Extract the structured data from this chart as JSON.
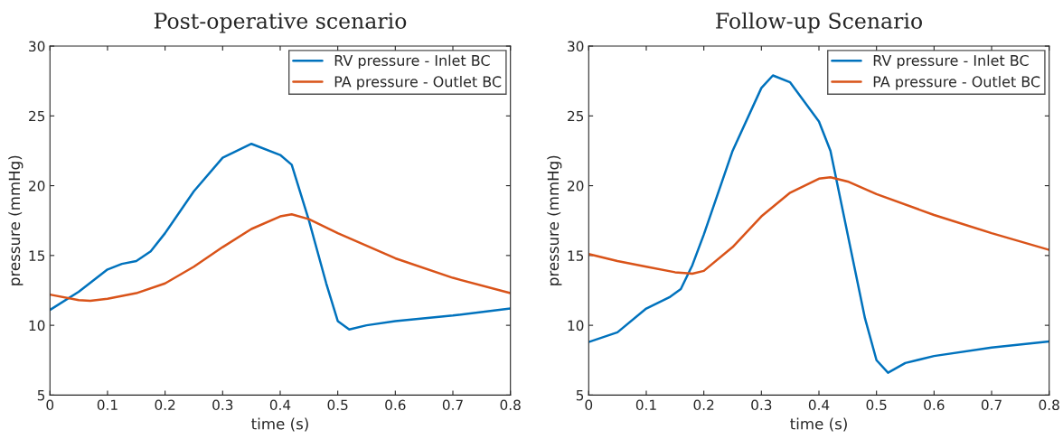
{
  "chart_data": [
    {
      "type": "line",
      "title": "Post-operative scenario",
      "xlabel": "time (s)",
      "ylabel": "pressure (mmHg)",
      "xlim": [
        0,
        0.8
      ],
      "ylim": [
        5,
        30
      ],
      "xticks": [
        0,
        0.1,
        0.2,
        0.3,
        0.4,
        0.5,
        0.6,
        0.7,
        0.8
      ],
      "yticks": [
        5,
        10,
        15,
        20,
        25,
        30
      ],
      "legend": "top right",
      "grid": false,
      "series": [
        {
          "name": "RV pressure - Inlet BC",
          "color": "#0072bd",
          "x": [
            0,
            0.05,
            0.1,
            0.125,
            0.15,
            0.175,
            0.2,
            0.25,
            0.3,
            0.35,
            0.4,
            0.42,
            0.45,
            0.48,
            0.5,
            0.52,
            0.55,
            0.6,
            0.7,
            0.8
          ],
          "values": [
            11.1,
            12.4,
            14.0,
            14.4,
            14.6,
            15.3,
            16.6,
            19.6,
            22.0,
            23.0,
            22.2,
            21.5,
            17.5,
            13.0,
            10.3,
            9.7,
            10.0,
            10.3,
            10.7,
            11.2
          ]
        },
        {
          "name": "PA pressure - Outlet BC",
          "color": "#d95319",
          "x": [
            0,
            0.05,
            0.07,
            0.1,
            0.15,
            0.2,
            0.25,
            0.3,
            0.35,
            0.4,
            0.42,
            0.45,
            0.5,
            0.6,
            0.7,
            0.8
          ],
          "values": [
            12.2,
            11.8,
            11.75,
            11.9,
            12.3,
            13.0,
            14.2,
            15.6,
            16.9,
            17.8,
            17.95,
            17.6,
            16.6,
            14.8,
            13.4,
            12.3
          ]
        }
      ]
    },
    {
      "type": "line",
      "title": "Follow-up Scenario",
      "xlabel": "time (s)",
      "ylabel": "pressure (mmHg)",
      "xlim": [
        0,
        0.8
      ],
      "ylim": [
        5,
        30
      ],
      "xticks": [
        0,
        0.1,
        0.2,
        0.3,
        0.4,
        0.5,
        0.6,
        0.7,
        0.8
      ],
      "yticks": [
        5,
        10,
        15,
        20,
        25,
        30
      ],
      "legend": "top right",
      "grid": false,
      "series": [
        {
          "name": "RV pressure - Inlet BC",
          "color": "#0072bd",
          "x": [
            0,
            0.05,
            0.1,
            0.14,
            0.16,
            0.18,
            0.2,
            0.25,
            0.3,
            0.32,
            0.35,
            0.4,
            0.42,
            0.45,
            0.48,
            0.5,
            0.52,
            0.55,
            0.6,
            0.7,
            0.8
          ],
          "values": [
            8.8,
            9.5,
            11.2,
            12.0,
            12.6,
            14.3,
            16.5,
            22.5,
            27.0,
            27.9,
            27.4,
            24.6,
            22.5,
            16.5,
            10.5,
            7.5,
            6.6,
            7.3,
            7.8,
            8.4,
            8.85
          ]
        },
        {
          "name": "PA pressure - Outlet BC",
          "color": "#d95319",
          "x": [
            0,
            0.05,
            0.1,
            0.15,
            0.18,
            0.2,
            0.25,
            0.3,
            0.35,
            0.4,
            0.42,
            0.45,
            0.5,
            0.6,
            0.7,
            0.8
          ],
          "values": [
            15.1,
            14.6,
            14.2,
            13.8,
            13.7,
            13.9,
            15.6,
            17.8,
            19.5,
            20.5,
            20.6,
            20.3,
            19.4,
            17.9,
            16.6,
            15.4
          ]
        }
      ]
    }
  ]
}
